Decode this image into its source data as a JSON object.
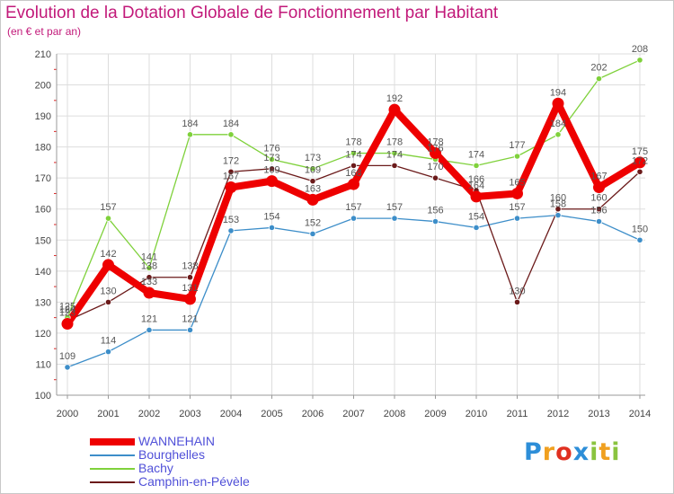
{
  "chart_data": {
    "type": "line",
    "title": "Evolution de la Dotation Globale de Fonctionnement par Habitant",
    "subtitle": "(en € et par an)",
    "xlabel": "",
    "ylabel": "",
    "categories": [
      "2000",
      "2001",
      "2002",
      "2003",
      "2004",
      "2005",
      "2006",
      "2007",
      "2008",
      "2009",
      "2010",
      "2011",
      "2012",
      "2013",
      "2014"
    ],
    "ylim": [
      100,
      210
    ],
    "yticks": [
      "100",
      "110",
      "120",
      "130",
      "140",
      "150",
      "160",
      "170",
      "180",
      "190",
      "200",
      "210"
    ],
    "grid": true,
    "legend_position": "bottom-left",
    "series": [
      {
        "name": "Bourghelles",
        "color": "#3d8ec9",
        "values": [
          109,
          114,
          121,
          121,
          153,
          154,
          152,
          157,
          157,
          156,
          154,
          157,
          158,
          156,
          150
        ]
      },
      {
        "name": "Bachy",
        "color": "#7fd13b",
        "values": [
          125,
          157,
          141,
          184,
          184,
          176,
          173,
          178,
          178,
          176,
          174,
          177,
          184,
          202,
          208
        ]
      },
      {
        "name": "Camphin-en-Pévèle",
        "color": "#6b1a1a",
        "values": [
          124,
          130,
          138,
          138,
          172,
          173,
          169,
          174,
          174,
          170,
          166,
          130,
          160,
          160,
          172
        ]
      },
      {
        "name": "WANNEHAIN",
        "color": "#ee0000",
        "values": [
          123,
          142,
          133,
          131,
          167,
          169,
          163,
          168,
          192,
          178,
          164,
          165,
          194,
          167,
          175
        ]
      }
    ],
    "legend": [
      "WANNEHAIN",
      "Bourghelles",
      "Bachy",
      "Camphin-en-Pévèle"
    ]
  },
  "legend_colors": [
    "#ee0000",
    "#3d8ec9",
    "#7fd13b",
    "#6b1a1a"
  ],
  "logo": {
    "text": "Proxiti",
    "letters": [
      "P",
      "r",
      "o",
      "x",
      "i",
      "t",
      "i"
    ],
    "colors": [
      "#2d8ed8",
      "#f0a020",
      "#e03020",
      "#2d8ed8",
      "#8ac43f",
      "#f0a020",
      "#8ac43f"
    ]
  }
}
